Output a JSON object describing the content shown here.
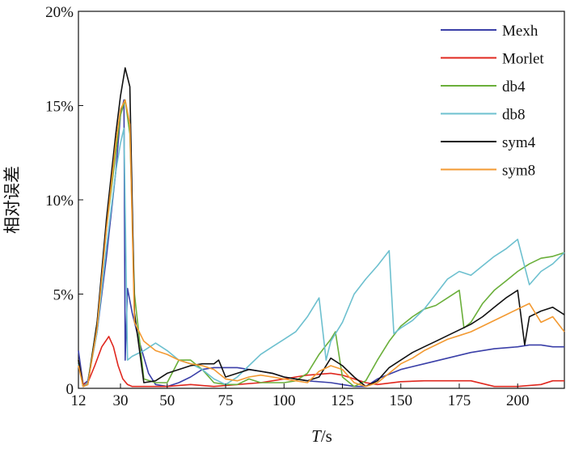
{
  "chart_data": {
    "type": "line",
    "title": "",
    "xlabel": "T/s",
    "ylabel": "相对误差",
    "xlim": [
      12,
      220
    ],
    "ylim": [
      0,
      20
    ],
    "x_ticks": [
      12,
      30,
      50,
      75,
      100,
      125,
      150,
      175,
      200
    ],
    "y_ticks": [
      0,
      5,
      10,
      15,
      20
    ],
    "y_tick_labels": [
      "0",
      "5%",
      "10%",
      "15%",
      "20%"
    ],
    "grid": false,
    "legend_position": "top-right",
    "series": [
      {
        "name": "Mexh",
        "color": "#3a3fa8",
        "x": [
          12,
          14,
          16,
          20,
          24,
          28,
          30,
          31.5,
          32,
          33,
          35,
          38,
          42,
          45,
          50,
          55,
          60,
          65,
          70,
          75,
          80,
          85,
          90,
          95,
          100,
          110,
          120,
          125,
          130,
          135,
          140,
          150,
          160,
          170,
          180,
          190,
          200,
          205,
          210,
          215,
          220
        ],
        "y": [
          2.0,
          0.2,
          0.4,
          3.0,
          7.0,
          11.5,
          14.5,
          15.3,
          1.5,
          5.3,
          4.0,
          2.5,
          0.8,
          0.2,
          0.1,
          0.3,
          0.6,
          1.0,
          1.1,
          1.1,
          1.1,
          1.0,
          0.9,
          0.8,
          0.6,
          0.4,
          0.3,
          0.2,
          0.1,
          0.1,
          0.5,
          1.0,
          1.3,
          1.6,
          1.9,
          2.1,
          2.2,
          2.3,
          2.3,
          2.2,
          2.2
        ]
      },
      {
        "name": "Morlet",
        "color": "#e0281f",
        "x": [
          12,
          14,
          16,
          19,
          22,
          25,
          27,
          29,
          31,
          33,
          35,
          40,
          45,
          50,
          60,
          70,
          80,
          90,
          100,
          105,
          110,
          120,
          125,
          130,
          135,
          140,
          150,
          160,
          170,
          180,
          190,
          200,
          210,
          215,
          220
        ],
        "y": [
          1.5,
          0.2,
          0.3,
          1.2,
          2.2,
          2.75,
          2.2,
          1.2,
          0.5,
          0.2,
          0.1,
          0.1,
          0.1,
          0.1,
          0.2,
          0.1,
          0.2,
          0.3,
          0.5,
          0.6,
          0.7,
          0.8,
          0.7,
          0.5,
          0.3,
          0.2,
          0.35,
          0.4,
          0.4,
          0.4,
          0.1,
          0.1,
          0.2,
          0.4,
          0.4
        ]
      },
      {
        "name": "db4",
        "color": "#6aaf3a",
        "x": [
          12,
          14,
          16,
          20,
          24,
          28,
          30,
          32,
          34,
          36,
          40,
          45,
          50,
          55,
          60,
          65,
          70,
          75,
          80,
          85,
          90,
          95,
          100,
          105,
          110,
          115,
          120,
          122,
          125,
          130,
          135,
          140,
          145,
          150,
          155,
          160,
          165,
          170,
          175,
          177,
          180,
          185,
          190,
          195,
          200,
          205,
          210,
          215,
          220
        ],
        "y": [
          1.5,
          0.1,
          0.3,
          3.5,
          8.5,
          12.5,
          14.5,
          15.3,
          13.5,
          5.0,
          0.5,
          0.3,
          0.3,
          1.5,
          1.5,
          1.0,
          0.3,
          0.2,
          0.2,
          0.5,
          0.3,
          0.3,
          0.3,
          0.4,
          0.8,
          1.8,
          2.6,
          3.0,
          0.6,
          0.1,
          0.4,
          1.5,
          2.5,
          3.3,
          3.8,
          4.2,
          4.4,
          4.8,
          5.2,
          3.2,
          3.5,
          4.5,
          5.2,
          5.7,
          6.2,
          6.6,
          6.9,
          7.0,
          7.2
        ]
      },
      {
        "name": "db8",
        "color": "#6dc0cf",
        "x": [
          12,
          14,
          16,
          20,
          24,
          28,
          30,
          31.5,
          33,
          35,
          40,
          45,
          50,
          55,
          60,
          65,
          70,
          75,
          80,
          85,
          90,
          95,
          100,
          105,
          110,
          115,
          118,
          120,
          125,
          130,
          135,
          140,
          145,
          147,
          150,
          155,
          160,
          165,
          170,
          175,
          180,
          185,
          190,
          195,
          200,
          205,
          210,
          215,
          220
        ],
        "y": [
          1.3,
          0.1,
          0.3,
          3.0,
          7.5,
          11.5,
          13.0,
          13.8,
          1.5,
          1.7,
          2.0,
          2.4,
          2.0,
          1.5,
          1.3,
          1.0,
          0.5,
          0.2,
          0.6,
          1.2,
          1.8,
          2.2,
          2.6,
          3.0,
          3.8,
          4.8,
          1.5,
          2.5,
          3.5,
          5.0,
          5.8,
          6.5,
          7.3,
          2.9,
          3.2,
          3.6,
          4.2,
          5.0,
          5.8,
          6.2,
          6.0,
          6.5,
          7.0,
          7.4,
          7.9,
          5.5,
          6.2,
          6.6,
          7.2
        ]
      },
      {
        "name": "sym4",
        "color": "#111111",
        "x": [
          12,
          14,
          16,
          20,
          24,
          28,
          30,
          32,
          34,
          36,
          40,
          45,
          50,
          55,
          60,
          65,
          70,
          72,
          75,
          80,
          85,
          90,
          95,
          100,
          105,
          110,
          115,
          120,
          125,
          130,
          135,
          140,
          145,
          150,
          155,
          160,
          165,
          170,
          175,
          180,
          185,
          190,
          195,
          200,
          203,
          205,
          210,
          215,
          220
        ],
        "y": [
          1.5,
          0.1,
          0.2,
          3.5,
          9.0,
          13.5,
          15.5,
          17.0,
          16.0,
          4.0,
          0.3,
          0.4,
          0.8,
          1.0,
          1.2,
          1.3,
          1.3,
          1.5,
          0.6,
          0.8,
          1.0,
          0.9,
          0.8,
          0.6,
          0.5,
          0.4,
          0.6,
          1.6,
          1.2,
          0.6,
          0.1,
          0.4,
          1.1,
          1.5,
          1.9,
          2.2,
          2.5,
          2.8,
          3.1,
          3.4,
          3.8,
          4.3,
          4.8,
          5.2,
          2.3,
          3.8,
          4.1,
          4.3,
          3.9
        ]
      },
      {
        "name": "sym8",
        "color": "#f39a32",
        "x": [
          12,
          14,
          16,
          20,
          24,
          28,
          30,
          32,
          34,
          36,
          40,
          45,
          50,
          55,
          60,
          65,
          70,
          75,
          80,
          85,
          90,
          95,
          100,
          105,
          110,
          115,
          120,
          125,
          130,
          135,
          140,
          145,
          150,
          155,
          160,
          165,
          170,
          175,
          180,
          185,
          190,
          195,
          200,
          205,
          210,
          215,
          220
        ],
        "y": [
          1.2,
          0.1,
          0.2,
          3.2,
          8.5,
          13.0,
          14.8,
          15.3,
          14.0,
          3.5,
          2.5,
          2.0,
          1.8,
          1.5,
          1.3,
          1.2,
          1.0,
          0.5,
          0.4,
          0.6,
          0.7,
          0.6,
          0.5,
          0.4,
          0.3,
          0.9,
          1.2,
          1.0,
          0.3,
          0.1,
          0.3,
          0.8,
          1.3,
          1.6,
          2.0,
          2.3,
          2.6,
          2.8,
          3.0,
          3.3,
          3.6,
          3.9,
          4.2,
          4.5,
          3.5,
          3.8,
          3.0
        ]
      }
    ]
  }
}
